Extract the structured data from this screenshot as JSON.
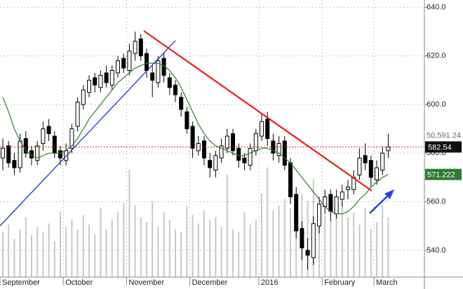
{
  "chart_data": {
    "type": "candlestick",
    "categories": [
      "September",
      null,
      null,
      null,
      null,
      null,
      null,
      null,
      null,
      null,
      null,
      "October",
      null,
      null,
      null,
      null,
      null,
      null,
      null,
      null,
      null,
      null,
      "November",
      null,
      null,
      null,
      null,
      null,
      null,
      null,
      null,
      null,
      null,
      "December",
      null,
      null,
      null,
      null,
      null,
      null,
      null,
      null,
      null,
      null,
      null,
      "2016",
      null,
      null,
      null,
      null,
      null,
      null,
      null,
      null,
      null,
      null,
      "February",
      null,
      null,
      null,
      null,
      null,
      null,
      null,
      null,
      "March",
      null,
      null
    ],
    "open": [
      578,
      583,
      577,
      574,
      586,
      581,
      577,
      584,
      591,
      587,
      581,
      577,
      582,
      591,
      600,
      605,
      611,
      607,
      613,
      608,
      613,
      619,
      614,
      621,
      627,
      621,
      613,
      609,
      619,
      611,
      608,
      603,
      597,
      591,
      581,
      585,
      577,
      573,
      578,
      582,
      588,
      582,
      578,
      575,
      581,
      587,
      594,
      585,
      579,
      585,
      576,
      563,
      549,
      540,
      537,
      550,
      558,
      563,
      555,
      561,
      565,
      565,
      571,
      579,
      577,
      569,
      573,
      581
    ],
    "high": [
      586,
      585,
      580,
      588,
      589,
      583,
      585,
      593,
      594,
      589,
      583,
      584,
      592,
      603,
      608,
      612,
      613,
      614,
      616,
      616,
      620,
      621,
      625,
      630,
      629,
      623,
      616,
      620,
      621,
      613,
      610,
      605,
      599,
      593,
      587,
      587,
      580,
      581,
      586,
      590,
      590,
      584,
      580,
      584,
      590,
      596,
      597,
      588,
      587,
      587,
      578,
      566,
      552,
      545,
      554,
      562,
      565,
      565,
      565,
      567,
      569,
      573,
      582,
      584,
      579,
      577,
      583,
      588
    ],
    "low": [
      573,
      574,
      571,
      572,
      578,
      575,
      575,
      581,
      585,
      578,
      575,
      575,
      580,
      589,
      598,
      603,
      605,
      605,
      607,
      606,
      611,
      613,
      612,
      618,
      618,
      611,
      603,
      607,
      609,
      604,
      601,
      595,
      588,
      578,
      579,
      575,
      570,
      570,
      576,
      580,
      579,
      574,
      573,
      573,
      579,
      585,
      583,
      577,
      576,
      573,
      559,
      545,
      536,
      532,
      534,
      547,
      555,
      552,
      553,
      558,
      561,
      563,
      569,
      573,
      566,
      567,
      571,
      578
    ],
    "close": [
      582,
      576,
      574,
      585,
      580,
      578,
      583,
      590,
      588,
      580,
      578,
      581,
      590,
      601,
      606,
      610,
      608,
      612,
      609,
      614,
      618,
      615,
      622,
      626,
      620,
      614,
      610,
      618,
      612,
      607,
      604,
      598,
      590,
      582,
      584,
      578,
      574,
      579,
      583,
      587,
      581,
      577,
      576,
      582,
      588,
      593,
      586,
      580,
      584,
      575,
      562,
      548,
      541,
      538,
      551,
      559,
      562,
      556,
      562,
      564,
      566,
      570,
      578,
      576,
      570,
      574,
      580,
      582.54
    ],
    "ma": [
      603,
      597,
      590,
      585,
      581,
      579,
      578,
      579,
      580,
      580,
      580,
      581,
      583,
      586,
      590,
      594,
      597,
      600,
      603,
      606,
      609,
      611,
      613,
      615,
      616,
      617,
      617,
      617,
      616,
      614,
      611,
      607,
      602,
      597,
      592,
      588,
      585,
      583,
      582,
      581,
      580,
      579,
      579,
      580,
      581,
      582,
      582,
      581,
      580,
      578,
      576,
      573,
      570,
      567,
      564,
      561,
      558,
      556,
      555,
      555,
      556,
      558,
      561,
      563,
      566,
      568,
      570,
      571.222
    ],
    "ma_color": "#2e7d2e",
    "volume": [
      38,
      44,
      32,
      40,
      50,
      35,
      42,
      38,
      45,
      30,
      55,
      42,
      48,
      40,
      52,
      44,
      36,
      58,
      40,
      48,
      55,
      62,
      90,
      60,
      50,
      46,
      64,
      42,
      55,
      48,
      40,
      38,
      60,
      52,
      45,
      56,
      48,
      50,
      42,
      86,
      40,
      38,
      55,
      44,
      48,
      70,
      92,
      56,
      60,
      66,
      58,
      62,
      70,
      64,
      82,
      60,
      52,
      48,
      56,
      62,
      50,
      54,
      44,
      58,
      40,
      46,
      60,
      50
    ],
    "volume_lim": [
      0,
      100
    ],
    "volume_color": "#c8c8c8",
    "ylim": [
      529,
      643
    ],
    "yticks": [
      {
        "value": 540,
        "label": "540.0"
      },
      {
        "value": 560,
        "label": "560.0"
      },
      {
        "value": 580,
        "label": "580.0"
      },
      {
        "value": 600,
        "label": "600.0"
      },
      {
        "value": 620,
        "label": "620.0"
      },
      {
        "value": 640,
        "label": "640.0"
      }
    ],
    "grid": true,
    "last_price": 582.54,
    "ma_last": 571.222,
    "index_label": "50,591.24"
  }
}
